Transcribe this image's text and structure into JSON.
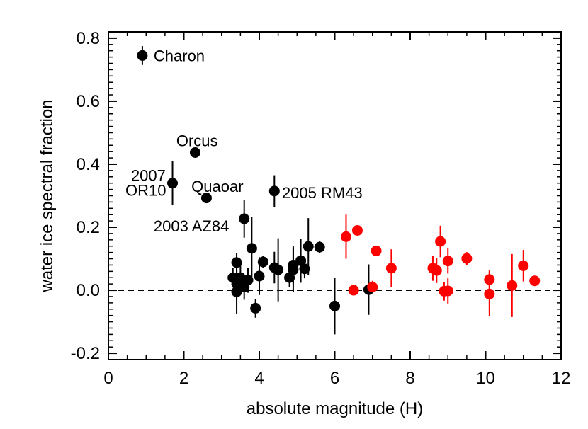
{
  "chart_data": {
    "type": "scatter",
    "title": "",
    "xlabel": "absolute magnitude (H)",
    "ylabel": "water ice spectral fraction",
    "xlim": [
      0,
      12
    ],
    "ylim": [
      -0.22,
      0.82
    ],
    "xticks": [
      0,
      2,
      4,
      6,
      8,
      10,
      12
    ],
    "xtick_labels": [
      "0",
      "2",
      "4",
      "6",
      "8",
      "10",
      "12"
    ],
    "yticks": [
      -0.2,
      0.0,
      0.2,
      0.4,
      0.6,
      0.8
    ],
    "ytick_labels": [
      "-0.2",
      "0.0",
      "0.2",
      "0.4",
      "0.6",
      "0.8"
    ],
    "reference_line": {
      "y": 0.0,
      "style": "dashed"
    },
    "colors": {
      "black_series": "#000000",
      "red_series": "#ff0000"
    },
    "series": [
      {
        "name": "black",
        "color": "#000000",
        "points": [
          {
            "x": 0.9,
            "y": 0.745,
            "yerr": 0.03
          },
          {
            "x": 1.7,
            "y": 0.34,
            "yerr": 0.07
          },
          {
            "x": 2.3,
            "y": 0.437,
            "yerr": 0.01
          },
          {
            "x": 2.6,
            "y": 0.293,
            "yerr": 0.01
          },
          {
            "x": 3.6,
            "y": 0.227,
            "yerr": 0.06
          },
          {
            "x": 4.4,
            "y": 0.315,
            "yerr": 0.05
          },
          {
            "x": 3.3,
            "y": 0.04,
            "yerr": 0.03
          },
          {
            "x": 3.4,
            "y": 0.088,
            "yerr": 0.03
          },
          {
            "x": 3.4,
            "y": 0.02,
            "yerr": 0.05
          },
          {
            "x": 3.4,
            "y": -0.005,
            "yerr": 0.07
          },
          {
            "x": 3.5,
            "y": 0.04,
            "yerr": 0.04
          },
          {
            "x": 3.6,
            "y": 0.01,
            "yerr": 0.04
          },
          {
            "x": 3.7,
            "y": 0.032,
            "yerr": 0.04
          },
          {
            "x": 3.8,
            "y": 0.133,
            "yerr": 0.1
          },
          {
            "x": 3.9,
            "y": -0.057,
            "yerr": 0.03
          },
          {
            "x": 4.0,
            "y": 0.045,
            "yerr": 0.06
          },
          {
            "x": 4.1,
            "y": 0.09,
            "yerr": 0.02
          },
          {
            "x": 4.4,
            "y": 0.072,
            "yerr": 0.05
          },
          {
            "x": 4.5,
            "y": 0.065,
            "yerr": 0.1
          },
          {
            "x": 4.8,
            "y": 0.04,
            "yerr": 0.03
          },
          {
            "x": 4.9,
            "y": 0.065,
            "yerr": 0.07
          },
          {
            "x": 4.9,
            "y": 0.08,
            "yerr": 0.06
          },
          {
            "x": 5.1,
            "y": 0.094,
            "yerr": 0.07
          },
          {
            "x": 5.2,
            "y": 0.068,
            "yerr": 0.03
          },
          {
            "x": 5.3,
            "y": 0.139,
            "yerr": 0.09
          },
          {
            "x": 5.6,
            "y": 0.137,
            "yerr": 0.02
          },
          {
            "x": 6.0,
            "y": -0.05,
            "yerr": 0.09
          },
          {
            "x": 6.9,
            "y": 0.002,
            "yerr": 0.08
          }
        ]
      },
      {
        "name": "red",
        "color": "#ff0000",
        "points": [
          {
            "x": 6.3,
            "y": 0.17,
            "yerr": 0.07
          },
          {
            "x": 6.5,
            "y": 0.0,
            "yerr": 0.01
          },
          {
            "x": 6.6,
            "y": 0.19,
            "yerr": 0.01
          },
          {
            "x": 7.0,
            "y": 0.01,
            "yerr": 0.02
          },
          {
            "x": 7.1,
            "y": 0.125,
            "yerr": 0.01
          },
          {
            "x": 7.5,
            "y": 0.07,
            "yerr": 0.06
          },
          {
            "x": 8.6,
            "y": 0.07,
            "yerr": 0.04
          },
          {
            "x": 8.7,
            "y": 0.063,
            "yerr": 0.04
          },
          {
            "x": 8.8,
            "y": 0.155,
            "yerr": 0.05
          },
          {
            "x": 8.9,
            "y": -0.003,
            "yerr": 0.03
          },
          {
            "x": 9.0,
            "y": 0.093,
            "yerr": 0.04
          },
          {
            "x": 9.0,
            "y": -0.002,
            "yerr": 0.04
          },
          {
            "x": 9.5,
            "y": 0.101,
            "yerr": 0.02
          },
          {
            "x": 10.1,
            "y": 0.034,
            "yerr": 0.03
          },
          {
            "x": 10.1,
            "y": -0.012,
            "yerr": 0.07
          },
          {
            "x": 10.7,
            "y": 0.015,
            "yerr": 0.1
          },
          {
            "x": 11.0,
            "y": 0.078,
            "yerr": 0.05
          },
          {
            "x": 11.3,
            "y": 0.03,
            "yerr": 0.01
          }
        ]
      }
    ],
    "annotations": [
      {
        "text": "Charon",
        "x": 1.2,
        "y": 0.745,
        "anchor": "start"
      },
      {
        "text": "Orcus",
        "x": 1.8,
        "y": 0.475,
        "anchor": "start"
      },
      {
        "text": "2007",
        "x": 0.6,
        "y": 0.365,
        "anchor": "start"
      },
      {
        "text": "OR10",
        "x": 0.45,
        "y": 0.318,
        "anchor": "start"
      },
      {
        "text": "Quaoar",
        "x": 2.2,
        "y": 0.33,
        "anchor": "start"
      },
      {
        "text": "2003 AZ84",
        "x": 1.2,
        "y": 0.205,
        "anchor": "start"
      },
      {
        "text": "2005 RM43",
        "x": 4.6,
        "y": 0.31,
        "anchor": "start"
      }
    ]
  }
}
